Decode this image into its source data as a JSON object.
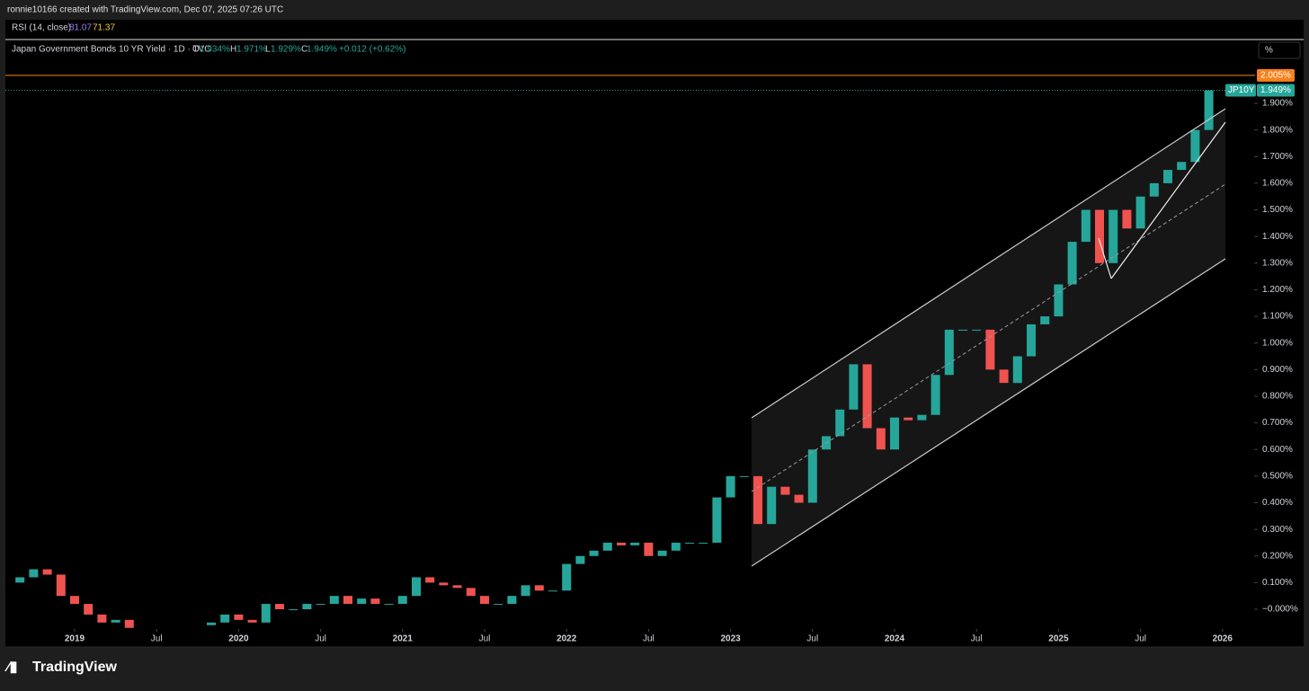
{
  "header": {
    "credit": "ronnie10166 created with TradingView.com, Dec 07, 2025 07:26 UTC"
  },
  "rsi": {
    "label": "RSI (14, close)",
    "value1": "81.07",
    "value2": "71.37"
  },
  "legend": {
    "symbol": "Japan Government Bonds 10 YR Yield · 1D · TVC",
    "o_key": "O",
    "o": "1.934%",
    "h_key": "H",
    "h": "1.971%",
    "l_key": "L",
    "l": "1.929%",
    "c_key": "C",
    "c": "1.949%",
    "change": "+0.012 (+0.62%)"
  },
  "scale_button": "%",
  "footer": {
    "brand": "TradingView"
  },
  "chart_data": {
    "type": "candlestick",
    "x": [
      "2018-08",
      "2018-09",
      "2018-10",
      "2018-11",
      "2018-12",
      "2019-01",
      "2019-02",
      "2019-03",
      "2019-04",
      "2019-05",
      "2019-06",
      "2019-07",
      "2019-08",
      "2019-09",
      "2019-10",
      "2019-11",
      "2019-12",
      "2020-01",
      "2020-02",
      "2020-03",
      "2020-04",
      "2020-05",
      "2020-06",
      "2020-07",
      "2020-08",
      "2020-09",
      "2020-10",
      "2020-11",
      "2020-12",
      "2021-01",
      "2021-02",
      "2021-03",
      "2021-04",
      "2021-05",
      "2021-06",
      "2021-07",
      "2021-08",
      "2021-09",
      "2021-10",
      "2021-11",
      "2021-12",
      "2022-01",
      "2022-02",
      "2022-03",
      "2022-04",
      "2022-05",
      "2022-06",
      "2022-07",
      "2022-08",
      "2022-09",
      "2022-10",
      "2022-11",
      "2022-12",
      "2023-01",
      "2023-02",
      "2023-03",
      "2023-04",
      "2023-05",
      "2023-06",
      "2023-07",
      "2023-08",
      "2023-09",
      "2023-10",
      "2023-11",
      "2023-12",
      "2024-01",
      "2024-02",
      "2024-03",
      "2024-04",
      "2024-05",
      "2024-06",
      "2024-07",
      "2024-08",
      "2024-09",
      "2024-10",
      "2024-11",
      "2024-12",
      "2025-01",
      "2025-02",
      "2025-03",
      "2025-04",
      "2025-05",
      "2025-06",
      "2025-07",
      "2025-08",
      "2025-09",
      "2025-10",
      "2025-11",
      "2025-12"
    ],
    "series": [
      {
        "name": "JP10Y",
        "up_color": "#26a69a",
        "down_color": "#ef5350",
        "values": [
          0.1,
          0.12,
          0.15,
          0.13,
          0.05,
          0.02,
          -0.02,
          -0.05,
          -0.04,
          -0.07,
          null,
          null,
          null,
          null,
          -0.06,
          -0.05,
          -0.02,
          -0.04,
          -0.05,
          0.02,
          0.0,
          0.0,
          0.02,
          0.02,
          0.05,
          0.02,
          0.04,
          0.02,
          0.02,
          0.05,
          0.12,
          0.1,
          0.09,
          0.08,
          0.05,
          0.02,
          0.02,
          0.05,
          0.09,
          0.07,
          0.07,
          0.17,
          0.2,
          0.22,
          0.25,
          0.24,
          0.25,
          0.2,
          0.22,
          0.25,
          0.25,
          0.25,
          0.42,
          0.5,
          0.5,
          0.32,
          0.46,
          0.43,
          0.4,
          0.6,
          0.65,
          0.75,
          0.92,
          0.68,
          0.6,
          0.72,
          0.71,
          0.73,
          0.88,
          1.05,
          1.05,
          1.05,
          0.9,
          0.85,
          0.95,
          1.07,
          1.1,
          1.22,
          1.38,
          1.5,
          1.3,
          1.5,
          1.43,
          1.55,
          1.6,
          1.65,
          1.68,
          1.8,
          1.949
        ]
      }
    ],
    "last_price": {
      "value": 1.949,
      "label": "1.949%",
      "symbol": "JP10Y"
    },
    "high_line": {
      "value": 2.005,
      "label": "2.005%"
    },
    "ylim": [
      -0.07,
      2.1
    ],
    "yticks": [
      {
        "value": 0,
        "label": "−0.000%"
      },
      {
        "value": 0.1,
        "label": "0.100%"
      },
      {
        "value": 0.2,
        "label": "0.200%"
      },
      {
        "value": 0.3,
        "label": "0.300%"
      },
      {
        "value": 0.4,
        "label": "0.400%"
      },
      {
        "value": 0.5,
        "label": "0.500%"
      },
      {
        "value": 0.6,
        "label": "0.600%"
      },
      {
        "value": 0.7,
        "label": "0.700%"
      },
      {
        "value": 0.8,
        "label": "0.800%"
      },
      {
        "value": 0.9,
        "label": "0.900%"
      },
      {
        "value": 1.0,
        "label": "1.000%"
      },
      {
        "value": 1.1,
        "label": "1.100%"
      },
      {
        "value": 1.2,
        "label": "1.200%"
      },
      {
        "value": 1.3,
        "label": "1.300%"
      },
      {
        "value": 1.4,
        "label": "1.400%"
      },
      {
        "value": 1.5,
        "label": "1.500%"
      },
      {
        "value": 1.6,
        "label": "1.600%"
      },
      {
        "value": 1.7,
        "label": "1.700%"
      },
      {
        "value": 1.8,
        "label": "1.800%"
      },
      {
        "value": 1.9,
        "label": "1.900%"
      }
    ],
    "xticks": [
      {
        "value": "2019-01",
        "label": "2019"
      },
      {
        "value": "2019-07",
        "label": "Jul"
      },
      {
        "value": "2020-01",
        "label": "2020"
      },
      {
        "value": "2020-07",
        "label": "Jul"
      },
      {
        "value": "2021-01",
        "label": "2021"
      },
      {
        "value": "2021-07",
        "label": "Jul"
      },
      {
        "value": "2022-01",
        "label": "2022"
      },
      {
        "value": "2022-07",
        "label": "Jul"
      },
      {
        "value": "2023-01",
        "label": "2023"
      },
      {
        "value": "2023-07",
        "label": "Jul"
      },
      {
        "value": "2024-01",
        "label": "2024"
      },
      {
        "value": "2024-07",
        "label": "Jul"
      },
      {
        "value": "2025-01",
        "label": "2025"
      },
      {
        "value": "2025-07",
        "label": "Jul"
      },
      {
        "value": "2026-01",
        "label": "2026"
      }
    ]
  }
}
